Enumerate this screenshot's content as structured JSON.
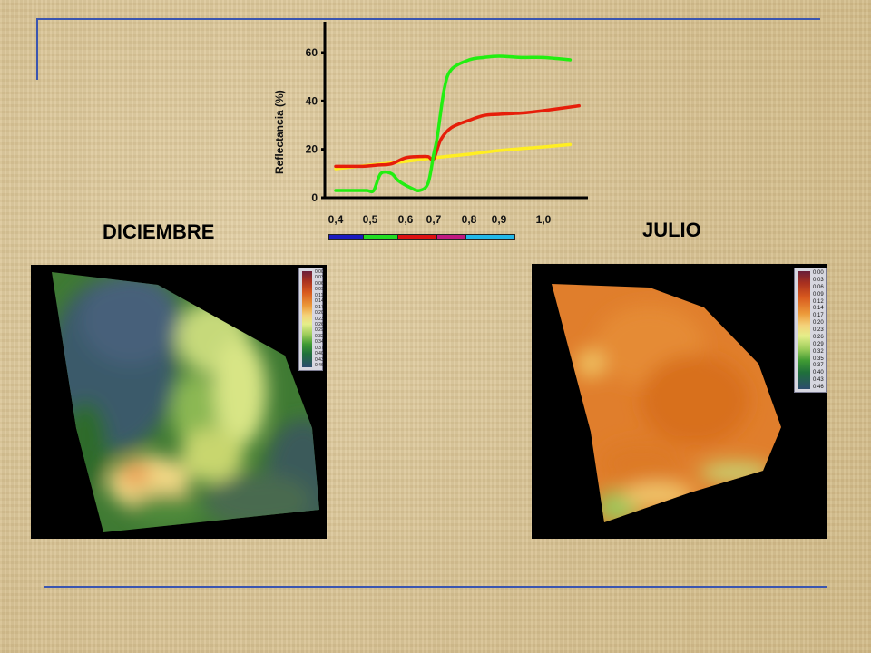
{
  "labels": {
    "left": "DICIEMBRE",
    "right": "JULIO"
  },
  "colors": {
    "frame_blue": "#3a55b0",
    "vegetation": "#22ee11",
    "soil": "#e61e0a",
    "water": "#ffee22"
  },
  "bands": [
    {
      "from": 0.4,
      "to": 0.5,
      "color": "#1a1ac0"
    },
    {
      "from": 0.5,
      "to": 0.6,
      "color": "#22dd22"
    },
    {
      "from": 0.6,
      "to": 0.7,
      "color": "#dd1111"
    },
    {
      "from": 0.7,
      "to": 0.75,
      "color": "#c01880"
    },
    {
      "from": 0.75,
      "to": 0.9,
      "color": "#22b8e8"
    }
  ],
  "legend_values": [
    "0.00",
    "0.03",
    "0.06",
    "0.09",
    "0.11",
    "0.14",
    "0.17",
    "0.20",
    "0.23",
    "0.26",
    "0.29",
    "0.32",
    "0.34",
    "0.37",
    "0.40",
    "0.43",
    "0.46"
  ],
  "legend_values_right": [
    "0.00",
    "0.03",
    "0.06",
    "0.09",
    "0.12",
    "0.14",
    "0.17",
    "0.20",
    "0.23",
    "0.26",
    "0.29",
    "0.32",
    "0.35",
    "0.37",
    "0.40",
    "0.43",
    "0.46"
  ],
  "chart_data": {
    "type": "line",
    "title": "",
    "xlabel": "",
    "ylabel": "Reflectancia (%)",
    "xlim": [
      0.4,
      1.1
    ],
    "ylim": [
      0,
      65
    ],
    "x_ticks": [
      {
        "value": 0.4,
        "label": "0,4"
      },
      {
        "value": 0.5,
        "label": "0,5"
      },
      {
        "value": 0.6,
        "label": "0,6"
      },
      {
        "value": 0.7,
        "label": "0,7"
      },
      {
        "value": 0.8,
        "label": "0,8"
      },
      {
        "value": 0.9,
        "label": "0,9"
      },
      {
        "value": 1.0,
        "label": "1,0"
      }
    ],
    "y_ticks": [
      0,
      20,
      40,
      60
    ],
    "grid": false,
    "series": [
      {
        "color": "#22ee11",
        "x": [
          0.4,
          0.46,
          0.49,
          0.51,
          0.53,
          0.56,
          0.58,
          0.62,
          0.65,
          0.68,
          0.7,
          0.71,
          0.73,
          0.75,
          0.8,
          0.85,
          0.9,
          0.95,
          1.0,
          1.06
        ],
        "y": [
          3,
          3,
          3,
          3,
          10,
          10,
          7,
          4,
          3,
          6,
          18,
          25,
          45,
          53,
          57,
          58,
          58.5,
          58,
          58,
          57
        ]
      },
      {
        "color": "#e61e0a",
        "x": [
          0.4,
          0.48,
          0.52,
          0.56,
          0.6,
          0.65,
          0.68,
          0.7,
          0.72,
          0.75,
          0.8,
          0.85,
          0.9,
          0.95,
          1.0,
          1.08
        ],
        "y": [
          13,
          13,
          13.5,
          14,
          16.5,
          17,
          17,
          16,
          24,
          29,
          32,
          34,
          34.5,
          35,
          36,
          38
        ]
      },
      {
        "color": "#ffee22",
        "x": [
          0.4,
          0.5,
          0.6,
          0.7,
          0.8,
          0.9,
          1.0,
          1.06
        ],
        "y": [
          12,
          13.5,
          15,
          16.5,
          18,
          19.5,
          21,
          22
        ]
      }
    ]
  }
}
